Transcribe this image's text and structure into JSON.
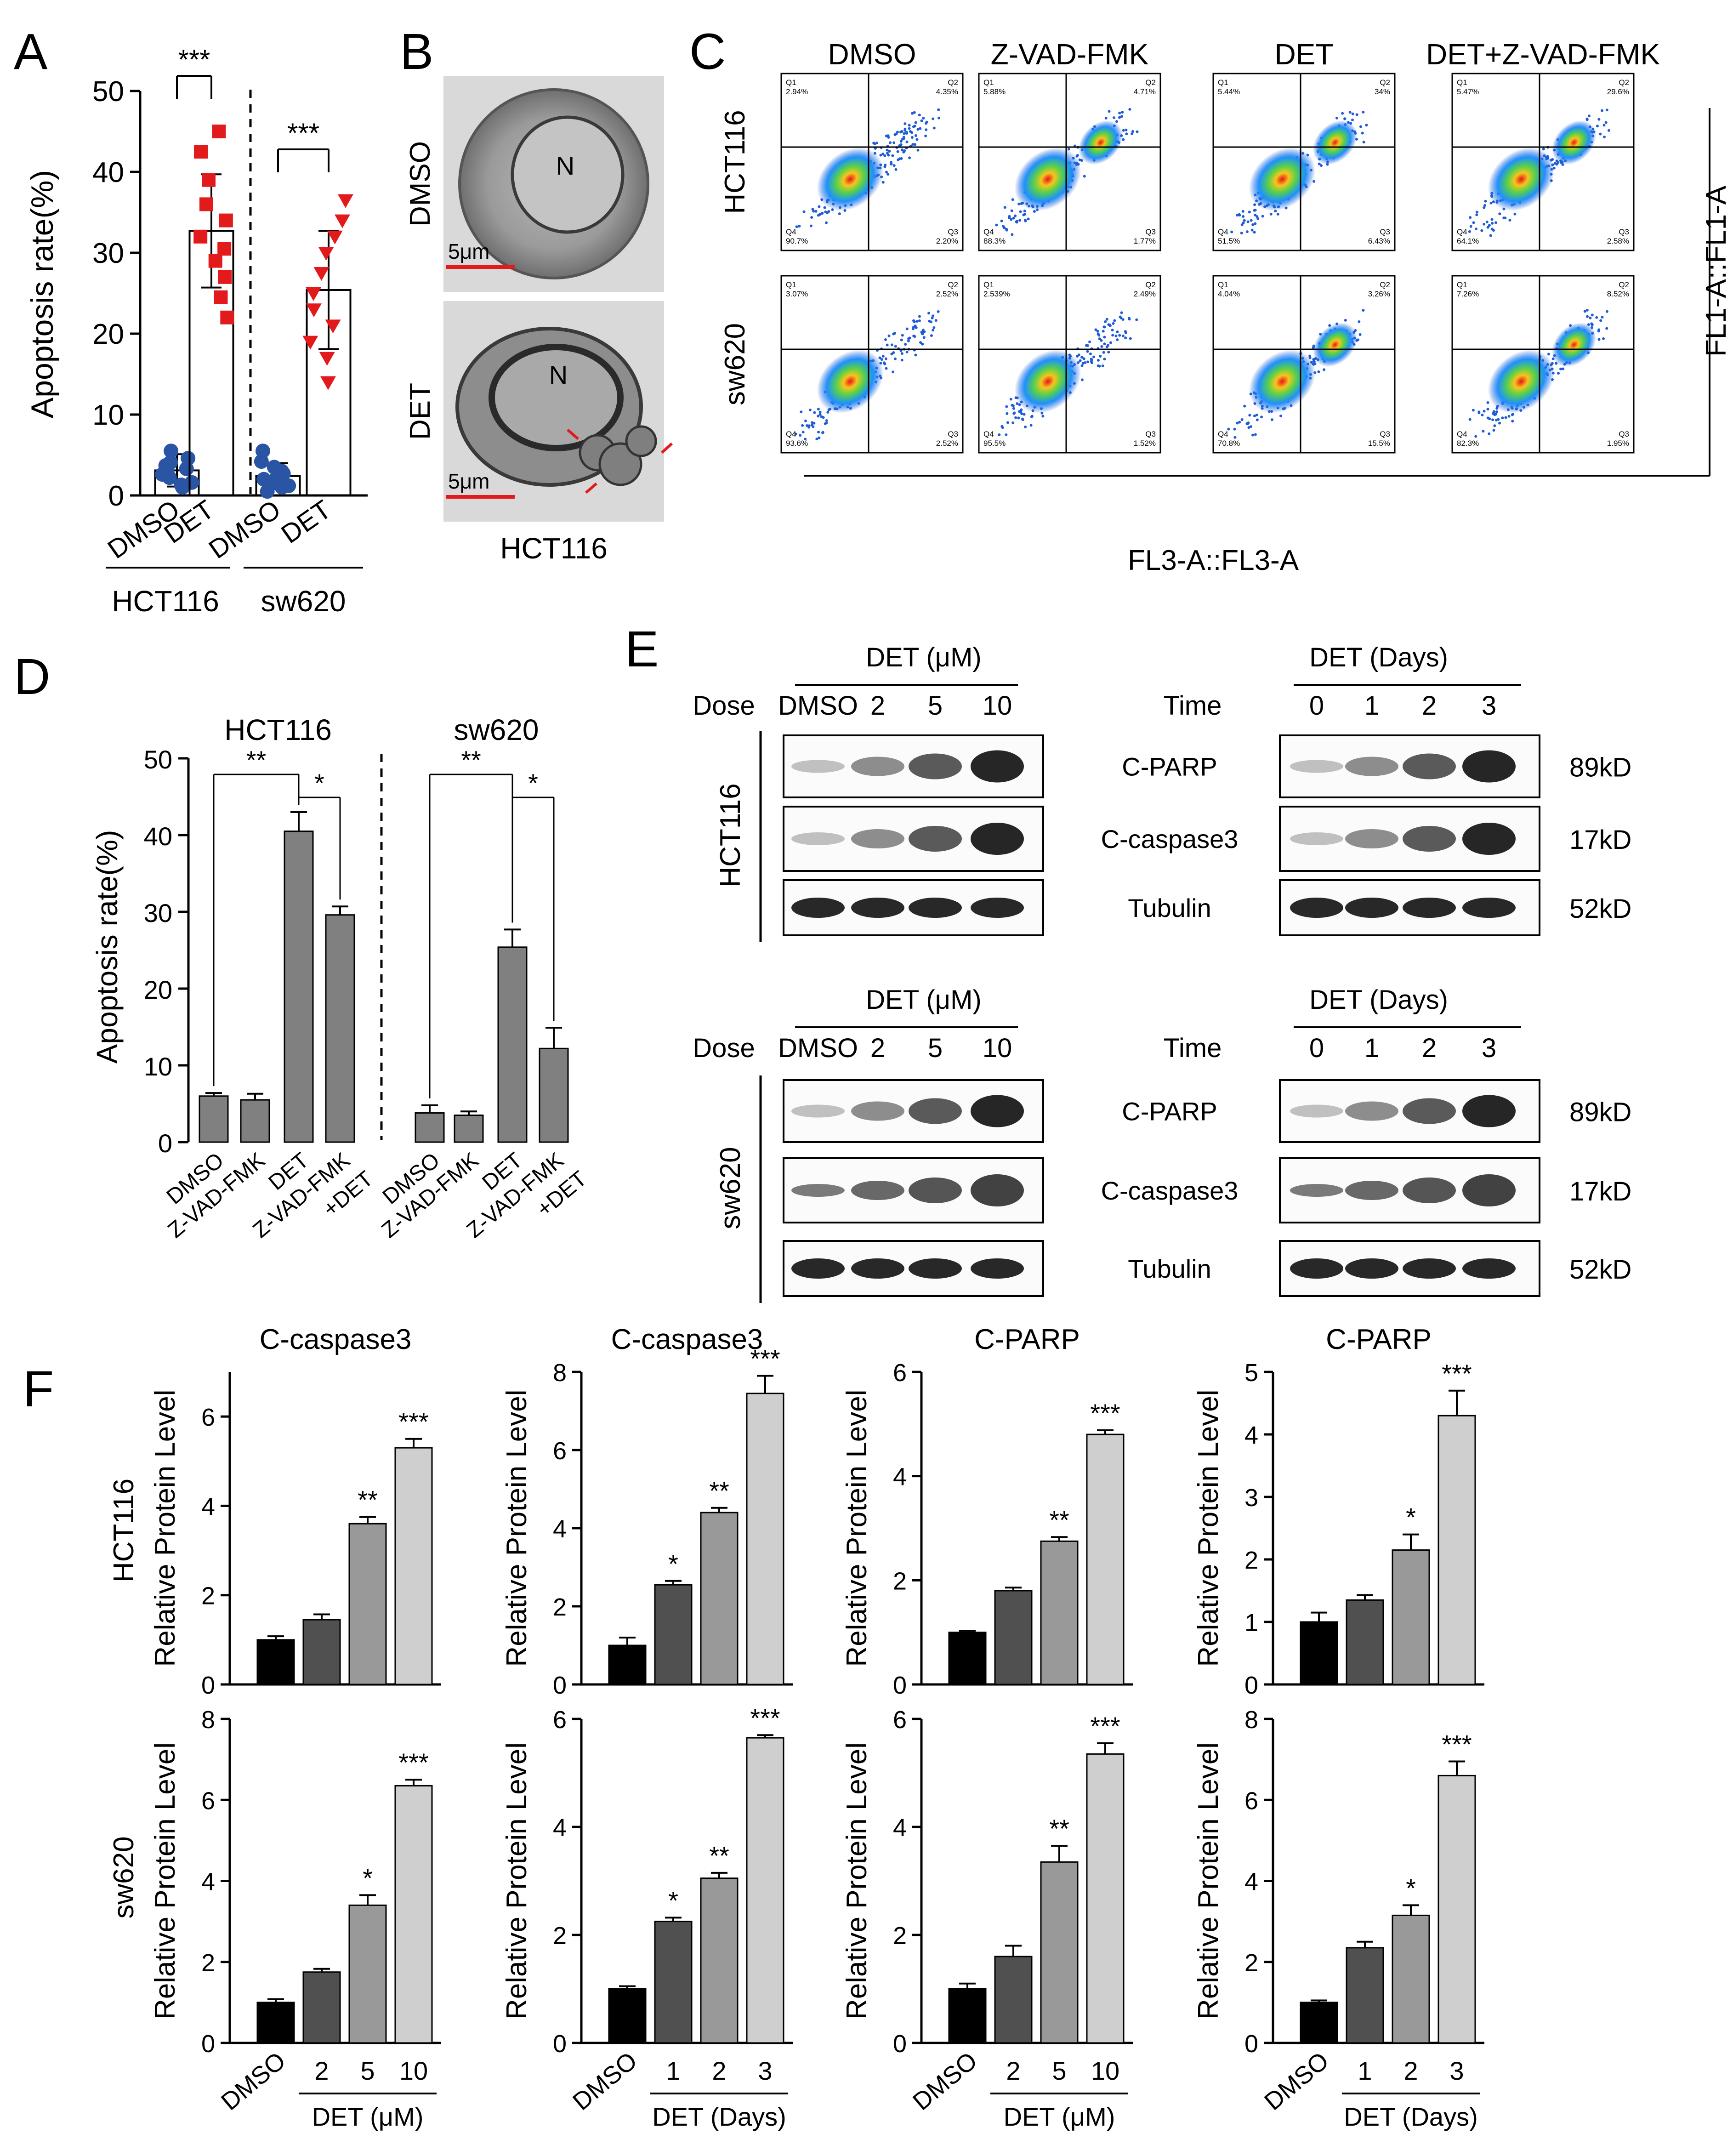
{
  "colors": {
    "blue_marker": "#2a55a5",
    "red_marker": "#e31a1c",
    "bar_gray_D": "#808080",
    "bar_black": "#000000",
    "bar_dark": "#505050",
    "bar_mid": "#999999",
    "bar_light": "#cfcfcf"
  },
  "panels": {
    "A": {
      "letter": "A",
      "chart_data": {
        "type": "scatter",
        "ylabel": "Apoptosis rate(%)",
        "ylim": [
          0,
          50
        ],
        "yticks": [
          "0",
          "10",
          "20",
          "30",
          "40",
          "50"
        ],
        "categories": [
          "DMSO",
          "DET",
          "DMSO",
          "DET"
        ],
        "groups": [
          "HCT116",
          "sw620"
        ],
        "means": [
          3.1,
          32.7,
          2.4,
          25.4
        ],
        "sd": [
          2.0,
          7.0,
          1.6,
          7.3
        ],
        "points": [
          [
            1.0,
            1.6,
            2.2,
            2.6,
            3.0,
            3.3,
            3.7,
            4.1,
            4.6,
            5.5,
            1.3
          ],
          [
            22.0,
            24.5,
            27.0,
            29.0,
            30.5,
            32.0,
            34.0,
            36.0,
            39.0,
            42.5,
            45.0
          ],
          [
            0.5,
            1.0,
            1.6,
            2.0,
            2.3,
            2.7,
            3.0,
            3.5,
            4.2,
            5.5,
            1.2
          ],
          [
            14.0,
            17.0,
            19.0,
            21.0,
            23.0,
            25.0,
            27.5,
            30.0,
            32.0,
            36.5,
            34.0
          ]
        ],
        "significance": [
          "***",
          "***"
        ]
      }
    },
    "B": {
      "letter": "B",
      "rows": [
        "DMSO",
        "DET"
      ],
      "nucleus_label": "N",
      "scale_bar": "5μm",
      "caption": "HCT116"
    },
    "C": {
      "letter": "C",
      "columns": [
        "DMSO",
        "Z-VAD-FMK",
        "DET",
        "DET+Z-VAD-FMK"
      ],
      "rows": [
        "HCT116",
        "sw620"
      ],
      "xlabel": "FL3-A::FL3-A",
      "ylabel": "FL1-A::FL1-A",
      "quadrant_names": [
        "Q1",
        "Q2",
        "Q3",
        "Q4"
      ],
      "quadrant_values": [
        [
          [
            "2.94%",
            "4.35%",
            "2.20%",
            "90.7%"
          ],
          [
            "5.88%",
            "4.71%",
            "1.77%",
            "88.3%"
          ],
          [
            "5.44%",
            "34%",
            "6.43%",
            "51.5%"
          ],
          [
            "5.47%",
            "29.6%",
            "2.58%",
            "64.1%"
          ]
        ],
        [
          [
            "3.07%",
            "2.52%",
            "2.52%",
            "93.6%"
          ],
          [
            "2.539%",
            "2.49%",
            "1.52%",
            "95.5%"
          ],
          [
            "4.04%",
            "3.26%",
            "15.5%",
            "70.8%"
          ],
          [
            "7.26%",
            "8.52%",
            "1.95%",
            "82.3%"
          ]
        ]
      ]
    },
    "D": {
      "letter": "D",
      "chart_data": {
        "type": "bar",
        "ylabel": "Apoptosis rate(%)",
        "ylim": [
          0,
          50
        ],
        "yticks": [
          "0",
          "10",
          "20",
          "30",
          "40",
          "50"
        ],
        "groups": [
          "HCT116",
          "sw620"
        ],
        "categories": [
          "DMSO",
          "Z-VAD-FMK",
          "DET",
          "Z-VAD-FMK +DET",
          "DMSO",
          "Z-VAD-FMK",
          "DET",
          "Z-VAD-FMK +DET"
        ],
        "category_lines": [
          [
            "DMSO"
          ],
          [
            "Z-VAD-FMK"
          ],
          [
            "DET"
          ],
          [
            "Z-VAD-FMK",
            "+DET"
          ],
          [
            "DMSO"
          ],
          [
            "Z-VAD-FMK"
          ],
          [
            "DET"
          ],
          [
            "Z-VAD-FMK",
            "+DET"
          ]
        ],
        "values": [
          6.0,
          5.5,
          40.5,
          29.6,
          3.8,
          3.5,
          25.4,
          12.2
        ],
        "errors": [
          0.4,
          0.8,
          2.5,
          1.1,
          1.0,
          0.5,
          2.3,
          2.7
        ],
        "significance": [
          "**",
          "*",
          "**",
          "*"
        ]
      }
    },
    "E": {
      "letter": "E",
      "dose_header": "DET (μM)",
      "time_header": "DET (Days)",
      "dose_label": "Dose",
      "time_label": "Time",
      "dose_lanes": [
        "DMSO",
        "2",
        "5",
        "10"
      ],
      "time_lanes": [
        "0",
        "1",
        "2",
        "3"
      ],
      "cell_lines": [
        "HCT116",
        "sw620"
      ],
      "proteins": [
        "C-PARP",
        "C-caspase3",
        "Tubulin"
      ],
      "weights": [
        "89kD",
        "17kD",
        "52kD"
      ]
    },
    "F": {
      "letter": "F",
      "row_labels": [
        "HCT116",
        "sw620"
      ],
      "ylabel": "Relative Protein Level",
      "group_labels": [
        "DET (μM)",
        "DET (Days)",
        "DET (μM)",
        "DET (Days)"
      ],
      "chart_data": [
        {
          "type": "bar",
          "title": "C-caspase3",
          "row": "HCT116",
          "categories": [
            "DMSO",
            "2",
            "5",
            "10"
          ],
          "values": [
            1.0,
            1.45,
            3.6,
            5.3
          ],
          "errors": [
            0.08,
            0.12,
            0.15,
            0.2
          ],
          "ylim": [
            0,
            7
          ],
          "yticks": [
            "0",
            "2",
            "4",
            "6"
          ],
          "significance": [
            "",
            "",
            "**",
            "***"
          ]
        },
        {
          "type": "bar",
          "title": "C-caspase3",
          "row": "HCT116",
          "categories": [
            "DMSO",
            "1",
            "2",
            "3"
          ],
          "values": [
            1.0,
            2.55,
            4.4,
            7.45
          ],
          "errors": [
            0.2,
            0.1,
            0.12,
            0.45
          ],
          "ylim": [
            0,
            8
          ],
          "yticks": [
            "0",
            "2",
            "4",
            "6",
            "8"
          ],
          "significance": [
            "",
            "*",
            "**",
            "***"
          ]
        },
        {
          "type": "bar",
          "title": "C-PARP",
          "row": "HCT116",
          "categories": [
            "DMSO",
            "2",
            "5",
            "10"
          ],
          "values": [
            1.0,
            1.8,
            2.75,
            4.8
          ],
          "errors": [
            0.03,
            0.06,
            0.08,
            0.08
          ],
          "ylim": [
            0,
            6
          ],
          "yticks": [
            "0",
            "2",
            "4",
            "6"
          ],
          "significance": [
            "",
            "",
            "**",
            "***"
          ]
        },
        {
          "type": "bar",
          "title": "C-PARP",
          "row": "HCT116",
          "categories": [
            "DMSO",
            "1",
            "2",
            "3"
          ],
          "values": [
            1.0,
            1.35,
            2.15,
            4.3
          ],
          "errors": [
            0.15,
            0.08,
            0.25,
            0.4
          ],
          "ylim": [
            0,
            5
          ],
          "yticks": [
            "0",
            "1",
            "2",
            "3",
            "4",
            "5"
          ],
          "significance": [
            "",
            "",
            "*",
            "***"
          ]
        },
        {
          "type": "bar",
          "title": "",
          "row": "sw620",
          "categories": [
            "DMSO",
            "2",
            "5",
            "10"
          ],
          "values": [
            1.0,
            1.75,
            3.4,
            6.35
          ],
          "errors": [
            0.08,
            0.08,
            0.25,
            0.15
          ],
          "ylim": [
            0,
            8
          ],
          "yticks": [
            "0",
            "2",
            "4",
            "6",
            "8"
          ],
          "significance": [
            "",
            "",
            "*",
            "***"
          ]
        },
        {
          "type": "bar",
          "title": "",
          "row": "sw620",
          "categories": [
            "DMSO",
            "1",
            "2",
            "3"
          ],
          "values": [
            1.0,
            2.25,
            3.05,
            5.65
          ],
          "errors": [
            0.05,
            0.07,
            0.1,
            0.05
          ],
          "ylim": [
            0,
            6
          ],
          "yticks": [
            "0",
            "2",
            "4",
            "6"
          ],
          "significance": [
            "",
            "*",
            "**",
            "***"
          ]
        },
        {
          "type": "bar",
          "title": "",
          "row": "sw620",
          "categories": [
            "DMSO",
            "2",
            "5",
            "10"
          ],
          "values": [
            1.0,
            1.6,
            3.35,
            5.35
          ],
          "errors": [
            0.1,
            0.2,
            0.3,
            0.2
          ],
          "ylim": [
            0,
            6
          ],
          "yticks": [
            "0",
            "2",
            "4",
            "6"
          ],
          "significance": [
            "",
            "",
            "**",
            "***"
          ]
        },
        {
          "type": "bar",
          "title": "",
          "row": "sw620",
          "categories": [
            "DMSO",
            "1",
            "2",
            "3"
          ],
          "values": [
            1.0,
            2.35,
            3.15,
            6.6
          ],
          "errors": [
            0.05,
            0.15,
            0.25,
            0.35
          ],
          "ylim": [
            0,
            8
          ],
          "yticks": [
            "0",
            "2",
            "4",
            "6",
            "8"
          ],
          "significance": [
            "",
            "",
            "*",
            "***"
          ]
        }
      ]
    }
  }
}
